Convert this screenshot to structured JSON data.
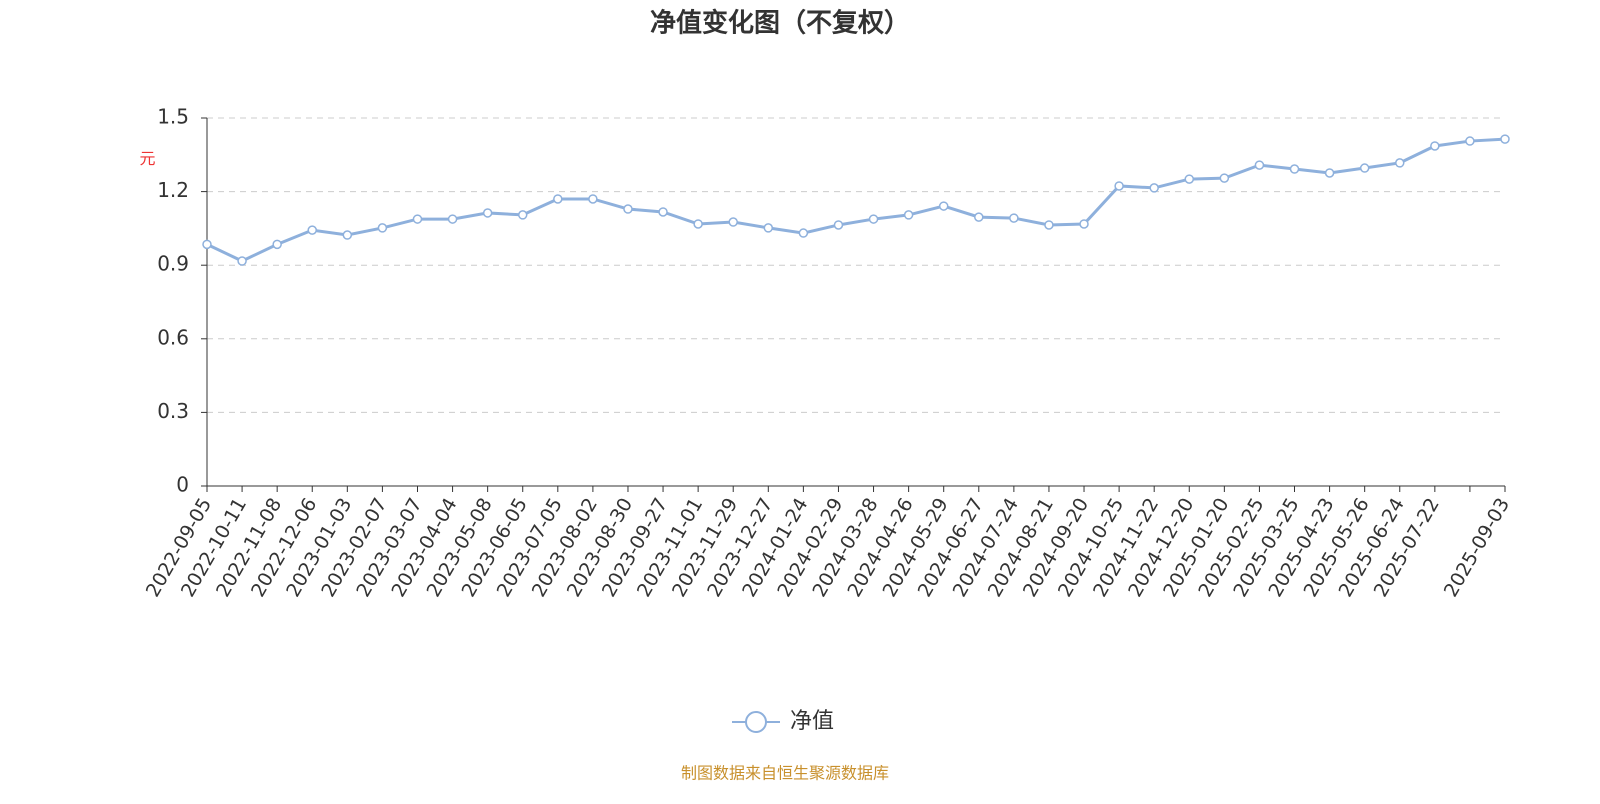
{
  "chart_data": {
    "type": "line",
    "title": "净值变化图（不复权）",
    "y_label": "元",
    "source": "制图数据来自恒生聚源数据库",
    "categories": [
      "2022-09-05",
      "2022-10-11",
      "2022-11-08",
      "2022-12-06",
      "2023-01-03",
      "2023-02-07",
      "2023-03-07",
      "2023-04-04",
      "2023-05-08",
      "2023-06-05",
      "2023-07-05",
      "2023-08-02",
      "2023-08-30",
      "2023-09-27",
      "2023-11-01",
      "2023-11-29",
      "2023-12-27",
      "2024-01-24",
      "2024-02-29",
      "2024-03-28",
      "2024-04-26",
      "2024-05-29",
      "2024-06-27",
      "2024-07-24",
      "2024-08-21",
      "2024-09-20",
      "2024-10-25",
      "2024-11-22",
      "2024-12-20",
      "2025-01-20",
      "2025-02-25",
      "2025-03-25",
      "2025-04-23",
      "2025-05-26",
      "2025-06-24",
      "2025-07-22",
      null,
      "2025-09-03"
    ],
    "series": [
      {
        "name": "净值",
        "color": "#8eb0dc",
        "values": [
          0.985,
          0.917,
          0.985,
          1.043,
          1.023,
          1.052,
          1.088,
          1.088,
          1.113,
          1.105,
          1.17,
          1.17,
          1.129,
          1.117,
          1.068,
          1.076,
          1.052,
          1.031,
          1.064,
          1.088,
          1.105,
          1.141,
          1.096,
          1.092,
          1.064,
          1.068,
          1.223,
          1.215,
          1.251,
          1.255,
          1.308,
          1.292,
          1.276,
          1.296,
          1.317,
          1.386,
          1.406,
          1.414
        ]
      }
    ],
    "ylim": [
      0,
      1.5
    ],
    "yticks": [
      0,
      0.3,
      0.6,
      0.9,
      1.2,
      1.5
    ],
    "grid": true
  }
}
